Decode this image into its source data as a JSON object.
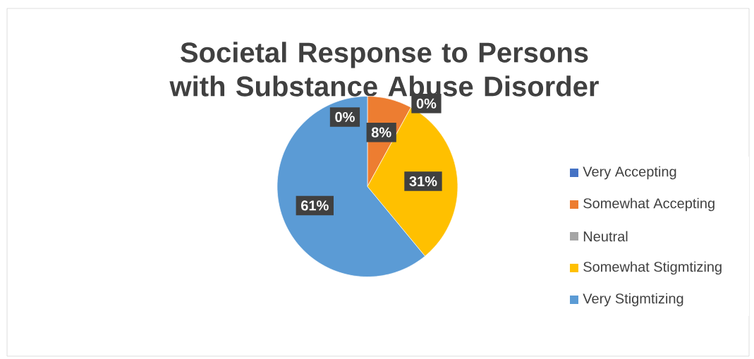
{
  "chart_data": {
    "type": "pie",
    "title": "Societal Response to Persons with Substance Abuse Disorder",
    "categories": [
      "Very Accepting",
      "Somewhat Accepting",
      "Neutral",
      "Somewhat Stigmtizing",
      "Very Stigmtizing"
    ],
    "values": [
      0,
      8,
      0,
      31,
      61
    ],
    "colors": [
      "#4472c4",
      "#ed7d31",
      "#a5a5a5",
      "#ffc000",
      "#5b9bd5"
    ],
    "value_labels": [
      "0%",
      "8%",
      "0%",
      "31%",
      "61%"
    ],
    "legend": "right"
  }
}
